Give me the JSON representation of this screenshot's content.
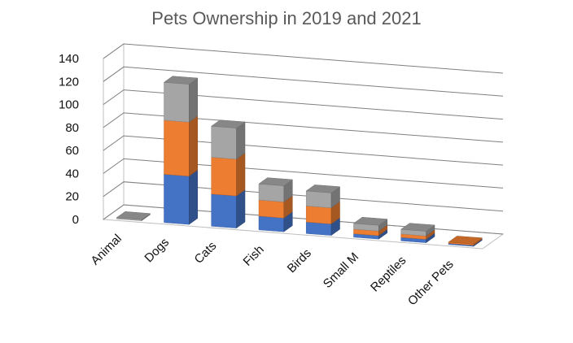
{
  "chart_data": {
    "type": "bar",
    "stacked": true,
    "three_d": true,
    "title": "Pets Ownership in 2019 and 2021",
    "categories": [
      "Animal",
      "Dogs",
      "Cats",
      "Fish",
      "Birds",
      "Small M",
      "Reptiles",
      "Other Pets"
    ],
    "series": [
      {
        "values": [
          0,
          42,
          28,
          12,
          10,
          3,
          3,
          1
        ]
      },
      {
        "values": [
          0,
          47,
          32,
          14,
          14,
          4,
          3,
          1
        ]
      },
      {
        "values": [
          1,
          33,
          27,
          14,
          13,
          5,
          4,
          0
        ]
      }
    ],
    "yticks": [
      "0",
      "20",
      "40",
      "60",
      "80",
      "100",
      "120",
      "140"
    ],
    "ylim": [
      0,
      140
    ],
    "grid": true,
    "legend": "none",
    "colors": [
      "#4472C4",
      "#ED7D31",
      "#A5A5A5"
    ]
  }
}
